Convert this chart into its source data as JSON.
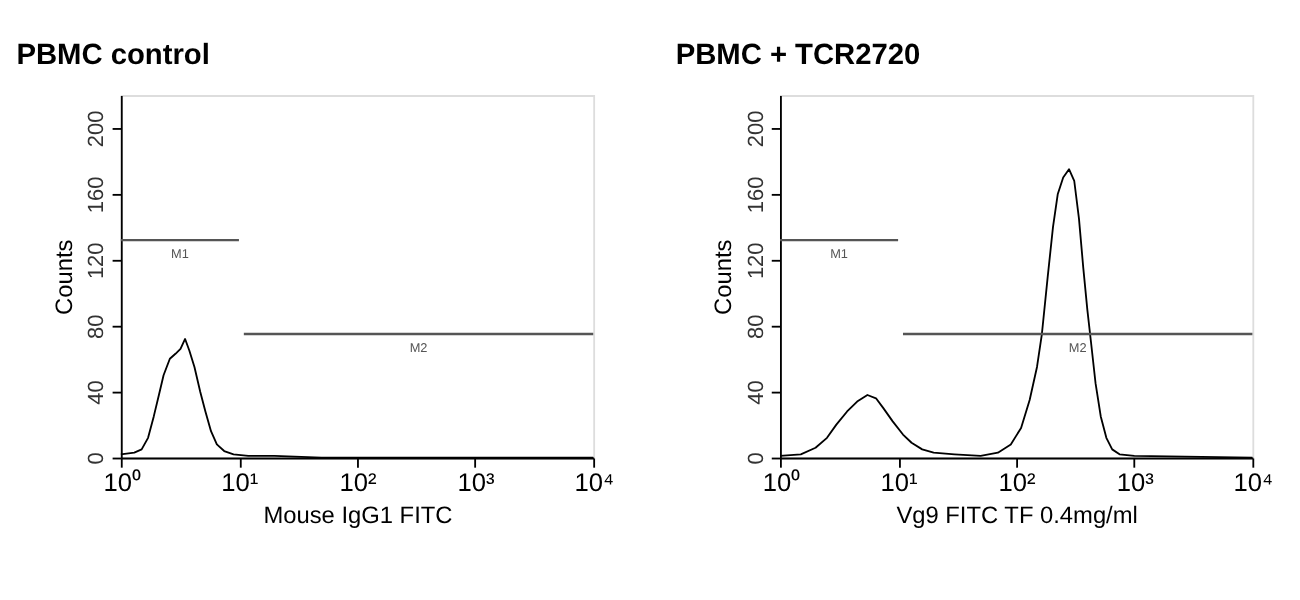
{
  "chart_data": [
    {
      "type": "line",
      "title": "PBMC control",
      "xlabel": "Mouse IgG1 FITC",
      "ylabel": "Counts",
      "log": "x",
      "grid": false,
      "marker": "none",
      "line_style": "solid",
      "xlim": [
        1,
        10000
      ],
      "xticks": [
        {
          "value": 1,
          "label": "10⁰"
        },
        {
          "value": 10,
          "label": "10¹"
        },
        {
          "value": 100,
          "label": "10²"
        },
        {
          "value": 1000,
          "label": "10³"
        },
        {
          "value": 10000,
          "label": "10⁴"
        }
      ],
      "ylim": [
        0,
        220
      ],
      "yticks": [
        0,
        40,
        80,
        120,
        160,
        200
      ],
      "series": [
        {
          "color": "#000000",
          "x": [
            1,
            1.3,
            1.5,
            1.7,
            1.9,
            2.1,
            2.3,
            2.6,
            2.9,
            3.2,
            3.5,
            3.8,
            4.2,
            4.7,
            5.2,
            5.8,
            6.5,
            7.5,
            9,
            12,
            20,
            50,
            10000
          ],
          "values": [
            2,
            3,
            5,
            12,
            25,
            38,
            50,
            60,
            63,
            66,
            72,
            65,
            55,
            40,
            28,
            16,
            8,
            4,
            2,
            1,
            1,
            0,
            0
          ]
        },
        {
          "name": "M1",
          "color": "#555555",
          "x": [
            1,
            10
          ],
          "values": [
            132,
            132
          ]
        },
        {
          "name": "M2",
          "color": "#555555",
          "x": [
            11,
            10000
          ],
          "values": [
            75,
            75
          ]
        }
      ]
    },
    {
      "type": "line",
      "title": "PBMC + TCR2720",
      "xlabel": "Vg9 FITC  TF  0.4mg/ml",
      "ylabel": "Counts",
      "log": "x",
      "grid": false,
      "marker": "none",
      "line_style": "solid",
      "xlim": [
        1,
        10000
      ],
      "xticks": [
        {
          "value": 1,
          "label": "10⁰"
        },
        {
          "value": 10,
          "label": "10¹"
        },
        {
          "value": 100,
          "label": "10²"
        },
        {
          "value": 1000,
          "label": "10³"
        },
        {
          "value": 10000,
          "label": "10⁴"
        }
      ],
      "ylim": [
        0,
        220
      ],
      "yticks": [
        0,
        40,
        80,
        120,
        160,
        200
      ],
      "series": [
        {
          "color": "#000000",
          "x": [
            1,
            1.5,
            2,
            2.5,
            3,
            3.7,
            4.5,
            5.5,
            6.5,
            7.5,
            9,
            11,
            13,
            16,
            20,
            30,
            50,
            70,
            90,
            110,
            130,
            150,
            165,
            185,
            205,
            225,
            250,
            280,
            310,
            340,
            370,
            400,
            430,
            470,
            520,
            580,
            650,
            750,
            1000,
            10000
          ],
          "values": [
            1,
            2,
            6,
            12,
            20,
            28,
            34,
            38,
            36,
            30,
            22,
            14,
            9,
            5,
            3,
            2,
            1,
            3,
            8,
            18,
            35,
            55,
            75,
            110,
            140,
            160,
            170,
            175,
            168,
            145,
            115,
            90,
            70,
            45,
            25,
            12,
            5,
            2,
            1,
            0
          ]
        },
        {
          "name": "M1",
          "color": "#555555",
          "x": [
            1,
            10
          ],
          "values": [
            132,
            132
          ]
        },
        {
          "name": "M2",
          "color": "#555555",
          "x": [
            11,
            10000
          ],
          "values": [
            75,
            75
          ]
        }
      ]
    }
  ]
}
